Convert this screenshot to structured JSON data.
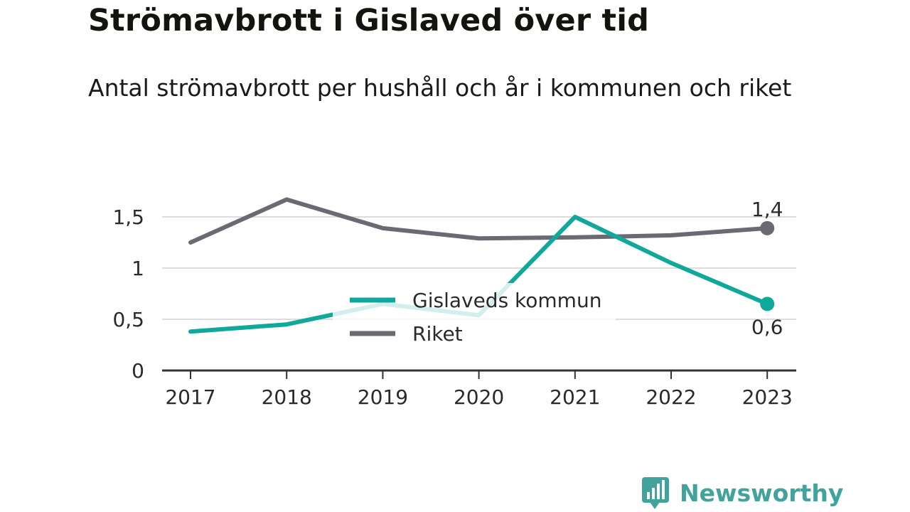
{
  "title": "Strömavbrott i Gislaved över tid",
  "subtitle": "Antal strömavbrott per hushåll och år i kommunen och riket",
  "brand": {
    "name": "Newsworthy",
    "color": "#41a39b",
    "icon": "newsworthy-logo-icon"
  },
  "colors": {
    "gislaved": "#0fa89a",
    "riket": "#6b6a72",
    "grid": "#dcdcdc",
    "axis": "#333333"
  },
  "chart_data": {
    "type": "line",
    "x": [
      "2017",
      "2018",
      "2019",
      "2020",
      "2021",
      "2022",
      "2023"
    ],
    "ylim": [
      0,
      1.6
    ],
    "yticks": [
      0,
      0.5,
      1,
      1.5
    ],
    "ytick_labels": [
      "0",
      "0,5",
      "1",
      "1,5"
    ],
    "grid": true,
    "legend": "center",
    "series": [
      {
        "name": "Gislaveds kommun",
        "color": "#0fa89a",
        "values": [
          0.38,
          0.45,
          0.65,
          0.54,
          1.5,
          1.05,
          0.65
        ],
        "end_label": "0,6"
      },
      {
        "name": "Riket",
        "color": "#6b6a72",
        "values": [
          1.25,
          1.67,
          1.39,
          1.29,
          1.3,
          1.32,
          1.39
        ],
        "end_label": "1,4"
      }
    ]
  }
}
